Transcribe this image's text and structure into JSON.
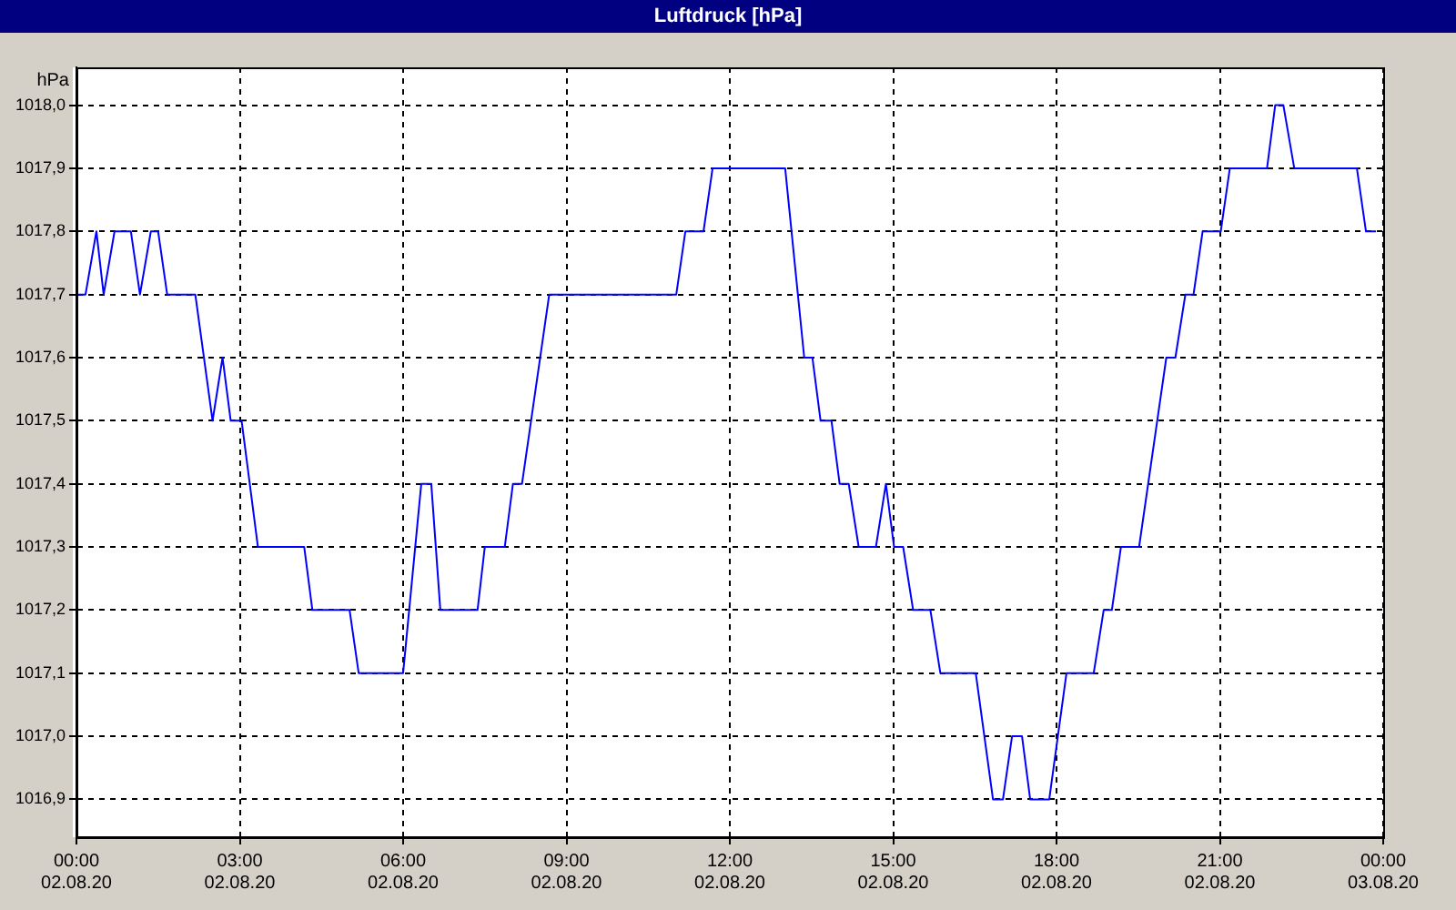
{
  "chart_data": {
    "type": "line",
    "title": "Luftdruck [hPa]",
    "ylabel": "hPa",
    "grid": true,
    "xlim": [
      "--08-02T00:00",
      "--08-03T00:00"
    ],
    "ylim": [
      1016.84,
      1018.06
    ],
    "xticks": [
      {
        "value": "--08-02T00:00",
        "label": "00:00 02.08.20"
      },
      {
        "value": "--08-02T03:00",
        "label": "03:00 02.08.20"
      },
      {
        "value": "--08-02T06:00",
        "label": "06:00 02.08.20"
      },
      {
        "value": "--08-02T09:00",
        "label": "09:00 02.08.20"
      },
      {
        "value": "--08-02T12:00",
        "label": "12:00 02.08.20"
      },
      {
        "value": "--08-02T15:00",
        "label": "15:00 02.08.20"
      },
      {
        "value": "--08-02T18:00",
        "label": "18:00 02.08.20"
      },
      {
        "value": "--08-02T21:00",
        "label": "21:00 02.08.20"
      },
      {
        "value": "--08-03T00:00",
        "label": "00:00 03.08.20"
      }
    ],
    "yticks": [
      {
        "value": 1016.9,
        "label": "1016,9"
      },
      {
        "value": 1017.0,
        "label": "1017,0"
      },
      {
        "value": 1017.1,
        "label": "1017,1"
      },
      {
        "value": 1017.2,
        "label": "1017,2"
      },
      {
        "value": 1017.3,
        "label": "1017,3"
      },
      {
        "value": 1017.4,
        "label": "1017,4"
      },
      {
        "value": 1017.5,
        "label": "1017,5"
      },
      {
        "value": 1017.6,
        "label": "1017,6"
      },
      {
        "value": 1017.7,
        "label": "1017,7"
      },
      {
        "value": 1017.8,
        "label": "1017,8"
      },
      {
        "value": 1017.9,
        "label": "1017,9"
      },
      {
        "value": 1018.0,
        "label": "1018,0"
      }
    ],
    "x": [
      "--08-02T00:00",
      "--08-02T00:10",
      "--08-02T00:22",
      "--08-02T00:30",
      "--08-02T00:42",
      "--08-02T01:00",
      "--08-02T01:10",
      "--08-02T01:22",
      "--08-02T01:30",
      "--08-02T01:40",
      "--08-02T02:11",
      "--08-02T02:30",
      "--08-02T02:41",
      "--08-02T02:50",
      "--08-02T03:02",
      "--08-02T03:20",
      "--08-02T04:11",
      "--08-02T04:20",
      "--08-02T05:01",
      "--08-02T05:11",
      "--08-02T06:00",
      "--08-02T06:20",
      "--08-02T06:31",
      "--08-02T06:41",
      "--08-02T07:22",
      "--08-02T07:30",
      "--08-02T07:52",
      "--08-02T08:01",
      "--08-02T08:11",
      "--08-02T08:41",
      "--08-02T11:01",
      "--08-02T11:11",
      "--08-02T11:31",
      "--08-02T11:41",
      "--08-02T13:01",
      "--08-02T13:22",
      "--08-02T13:31",
      "--08-02T13:40",
      "--08-02T13:52",
      "--08-02T14:01",
      "--08-02T14:11",
      "--08-02T14:22",
      "--08-02T14:41",
      "--08-02T14:52",
      "--08-02T15:01",
      "--08-02T15:11",
      "--08-02T15:22",
      "--08-02T15:41",
      "--08-02T15:52",
      "--08-02T16:31",
      "--08-02T16:50",
      "--08-02T17:01",
      "--08-02T17:11",
      "--08-02T17:22",
      "--08-02T17:31",
      "--08-02T17:52",
      "--08-02T18:11",
      "--08-02T18:41",
      "--08-02T18:52",
      "--08-02T19:01",
      "--08-02T19:11",
      "--08-02T19:31",
      "--08-02T20:01",
      "--08-02T20:11",
      "--08-02T20:22",
      "--08-02T20:31",
      "--08-02T20:41",
      "--08-02T21:01",
      "--08-02T21:11",
      "--08-02T21:52",
      "--08-02T22:01",
      "--08-02T22:10",
      "--08-02T22:22",
      "--08-02T23:31",
      "--08-02T23:41",
      "--08-02T23:52"
    ],
    "series": [
      {
        "color": "#0000ff",
        "values": [
          1017.7,
          1017.7,
          1017.8,
          1017.7,
          1017.8,
          1017.8,
          1017.7,
          1017.8,
          1017.8,
          1017.7,
          1017.7,
          1017.5,
          1017.6,
          1017.5,
          1017.5,
          1017.3,
          1017.3,
          1017.2,
          1017.2,
          1017.1,
          1017.1,
          1017.4,
          1017.4,
          1017.2,
          1017.2,
          1017.3,
          1017.3,
          1017.4,
          1017.4,
          1017.7,
          1017.7,
          1017.8,
          1017.8,
          1017.9,
          1017.9,
          1017.6,
          1017.6,
          1017.5,
          1017.5,
          1017.4,
          1017.4,
          1017.3,
          1017.3,
          1017.4,
          1017.3,
          1017.3,
          1017.2,
          1017.2,
          1017.1,
          1017.1,
          1016.9,
          1016.9,
          1017.0,
          1017.0,
          1016.9,
          1016.9,
          1017.1,
          1017.1,
          1017.2,
          1017.2,
          1017.3,
          1017.3,
          1017.6,
          1017.6,
          1017.7,
          1017.7,
          1017.8,
          1017.8,
          1017.9,
          1017.9,
          1018.0,
          1018.0,
          1017.9,
          1017.9,
          1017.8,
          1017.8
        ]
      }
    ]
  }
}
